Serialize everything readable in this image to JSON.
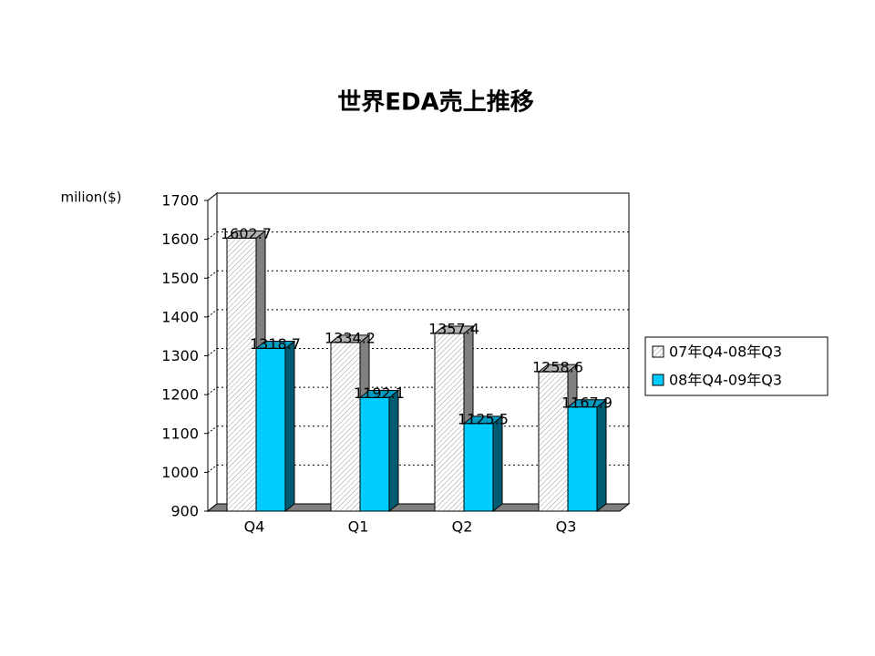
{
  "chart_data": {
    "type": "bar3d",
    "title": "世界EDA売上推移",
    "y_label": "milion($)",
    "categories": [
      "Q4",
      "Q1",
      "Q2",
      "Q3"
    ],
    "series": [
      {
        "name": "07年Q4-08年Q3",
        "color": "#ffffff",
        "pattern": "hatch",
        "values": [
          1602.7,
          1334.2,
          1357.4,
          1258.6
        ]
      },
      {
        "name": "08年Q4-09年Q3",
        "color": "#00ccff",
        "values": [
          1318.7,
          1192.1,
          1125.5,
          1167.9
        ]
      }
    ],
    "ylim": [
      900,
      1700
    ],
    "yticks": [
      900,
      1000,
      1100,
      1200,
      1300,
      1400,
      1500,
      1600,
      1700
    ],
    "grid": true,
    "legend": "right"
  }
}
